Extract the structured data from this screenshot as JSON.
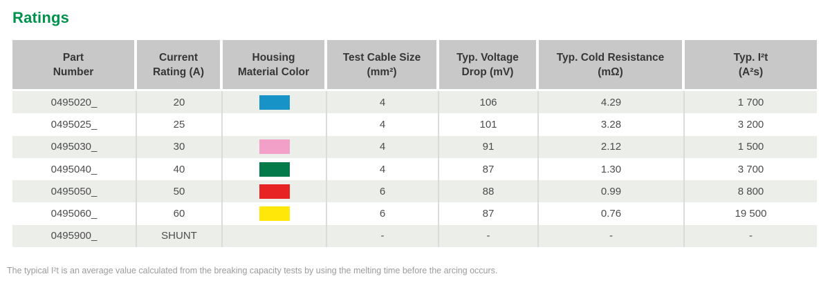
{
  "page": {
    "title": "Ratings",
    "footnote": "The typical I²t is an average value calculated from the breaking capacity tests by using the melting time before the arcing occurs."
  },
  "colors": {
    "accent_green": "#00914C",
    "header_bg": "#C7C8C7",
    "row_alt_bg": "#ECEEEA",
    "separator": "#D9DCD9",
    "header_text": "#363636",
    "body_text": "#4C4C4C",
    "footnote_text": "#9B9B9B"
  },
  "table": {
    "columns": [
      {
        "id": "part_number",
        "line1": "Part",
        "line2": "Number"
      },
      {
        "id": "current_rating",
        "line1": "Current",
        "line2": "Rating (A)"
      },
      {
        "id": "housing_color",
        "line1": "Housing",
        "line2": "Material Color"
      },
      {
        "id": "test_cable_size",
        "line1": "Test Cable Size",
        "line2": "(mm²)"
      },
      {
        "id": "voltage_drop",
        "line1": "Typ. Voltage",
        "line2": "Drop (mV)"
      },
      {
        "id": "cold_resistance",
        "line1": "Typ. Cold Resistance",
        "line2": "(mΩ)"
      },
      {
        "id": "i2t",
        "line1": "Typ. I²t",
        "line2": "(A²s)"
      }
    ],
    "rows": [
      {
        "part_number": "0495020_",
        "current_rating": "20",
        "housing_color_swatch": "#1793C7",
        "housing_color_name": "blue",
        "test_cable_size": "4",
        "voltage_drop": "106",
        "cold_resistance": "4.29",
        "i2t": "1 700"
      },
      {
        "part_number": "0495025_",
        "current_rating": "25",
        "housing_color_swatch": null,
        "housing_color_name": "none",
        "test_cable_size": "4",
        "voltage_drop": "101",
        "cold_resistance": "3.28",
        "i2t": "3 200"
      },
      {
        "part_number": "0495030_",
        "current_rating": "30",
        "housing_color_swatch": "#F2A0C7",
        "housing_color_name": "pink",
        "test_cable_size": "4",
        "voltage_drop": "91",
        "cold_resistance": "2.12",
        "i2t": "1 500"
      },
      {
        "part_number": "0495040_",
        "current_rating": "40",
        "housing_color_swatch": "#047A4B",
        "housing_color_name": "green",
        "test_cable_size": "4",
        "voltage_drop": "87",
        "cold_resistance": "1.30",
        "i2t": "3 700"
      },
      {
        "part_number": "0495050_",
        "current_rating": "50",
        "housing_color_swatch": "#E72423",
        "housing_color_name": "red",
        "test_cable_size": "6",
        "voltage_drop": "88",
        "cold_resistance": "0.99",
        "i2t": "8 800"
      },
      {
        "part_number": "0495060_",
        "current_rating": "60",
        "housing_color_swatch": "#FFE70A",
        "housing_color_name": "yellow",
        "test_cable_size": "6",
        "voltage_drop": "87",
        "cold_resistance": "0.76",
        "i2t": "19 500"
      },
      {
        "part_number": "0495900_",
        "current_rating": "SHUNT",
        "housing_color_swatch": null,
        "housing_color_name": "none",
        "test_cable_size": "-",
        "voltage_drop": "-",
        "cold_resistance": "-",
        "i2t": "-"
      }
    ]
  }
}
